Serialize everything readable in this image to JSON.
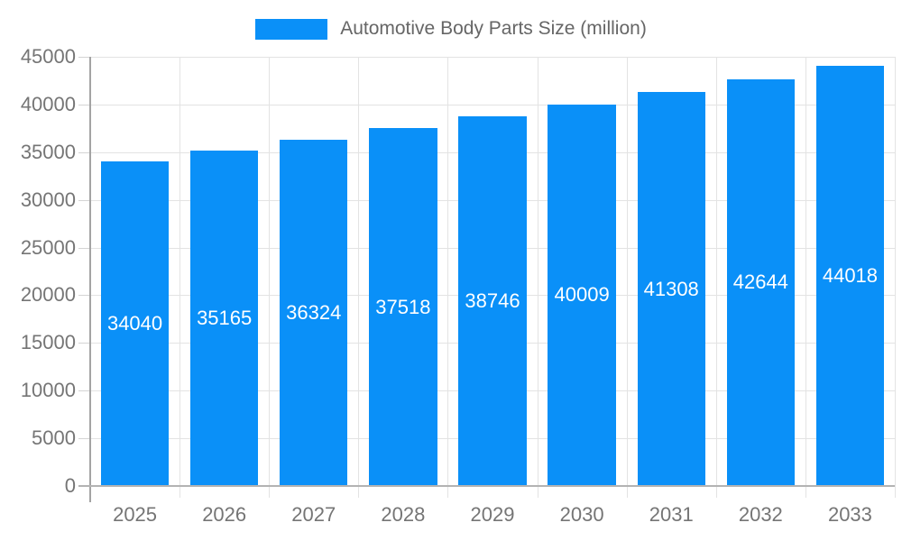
{
  "chart_data": {
    "type": "bar",
    "title": "Automotive Body Parts Size (million)",
    "categories": [
      "2025",
      "2026",
      "2027",
      "2028",
      "2029",
      "2030",
      "2031",
      "2032",
      "2033"
    ],
    "values": [
      34040,
      35165,
      36324,
      37518,
      38746,
      40009,
      41308,
      42644,
      44018
    ],
    "xlabel": "",
    "ylabel": "",
    "ylim": [
      0,
      45000
    ],
    "yticks": [
      0,
      5000,
      10000,
      15000,
      20000,
      25000,
      30000,
      35000,
      40000,
      45000
    ],
    "grid": true,
    "legend_position": "top-center",
    "bar_color": "#0a90f8",
    "bar_label_color": "#ffffff",
    "axis_text_color": "#757575",
    "legend_text_color": "#666666",
    "gridline_color": "#e3e3e3",
    "background_color": "#ffffff"
  }
}
